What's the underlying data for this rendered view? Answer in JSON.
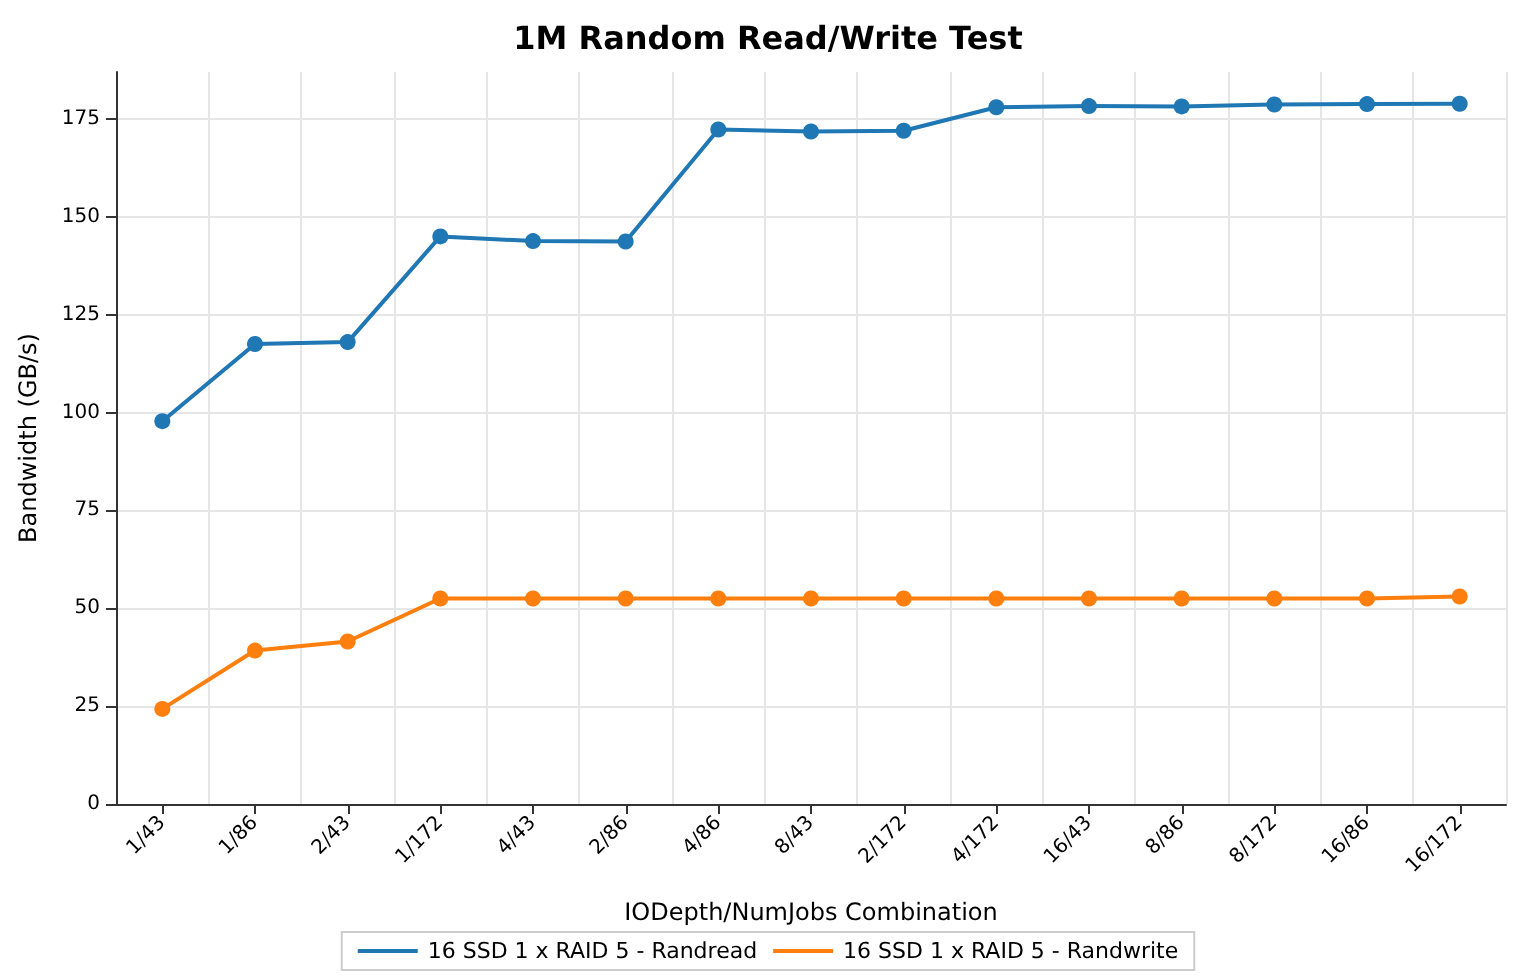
{
  "chart_data": {
    "type": "line",
    "title": "1M Random Read/Write Test",
    "xlabel": "IODepth/NumJobs Combination",
    "ylabel": "Bandwidth (GB/s)",
    "categories": [
      "1/43",
      "1/86",
      "2/43",
      "1/172",
      "4/43",
      "2/86",
      "4/86",
      "8/43",
      "2/172",
      "4/172",
      "16/43",
      "8/86",
      "8/172",
      "16/86",
      "16/172"
    ],
    "series": [
      {
        "name": "16 SSD 1 x RAID 5 - Randread",
        "color": "#1f77b4",
        "values": [
          97.8,
          117.5,
          118,
          145,
          143.8,
          143.7,
          172.3,
          171.8,
          172,
          178,
          178.3,
          178.2,
          178.7,
          178.8,
          178.9
        ]
      },
      {
        "name": "16 SSD 1 x RAID 5 - Randwrite",
        "color": "#ff7f0e",
        "values": [
          24.3,
          39.2,
          41.5,
          52.5,
          52.5,
          52.5,
          52.5,
          52.5,
          52.5,
          52.5,
          52.5,
          52.5,
          52.5,
          52.5,
          53
        ]
      }
    ],
    "ylim": [
      0,
      187
    ],
    "yticks": [
      0,
      25,
      50,
      75,
      100,
      125,
      150,
      175
    ],
    "grid": true,
    "legend": "bottom",
    "marker": "circle",
    "line_style": "solid"
  }
}
